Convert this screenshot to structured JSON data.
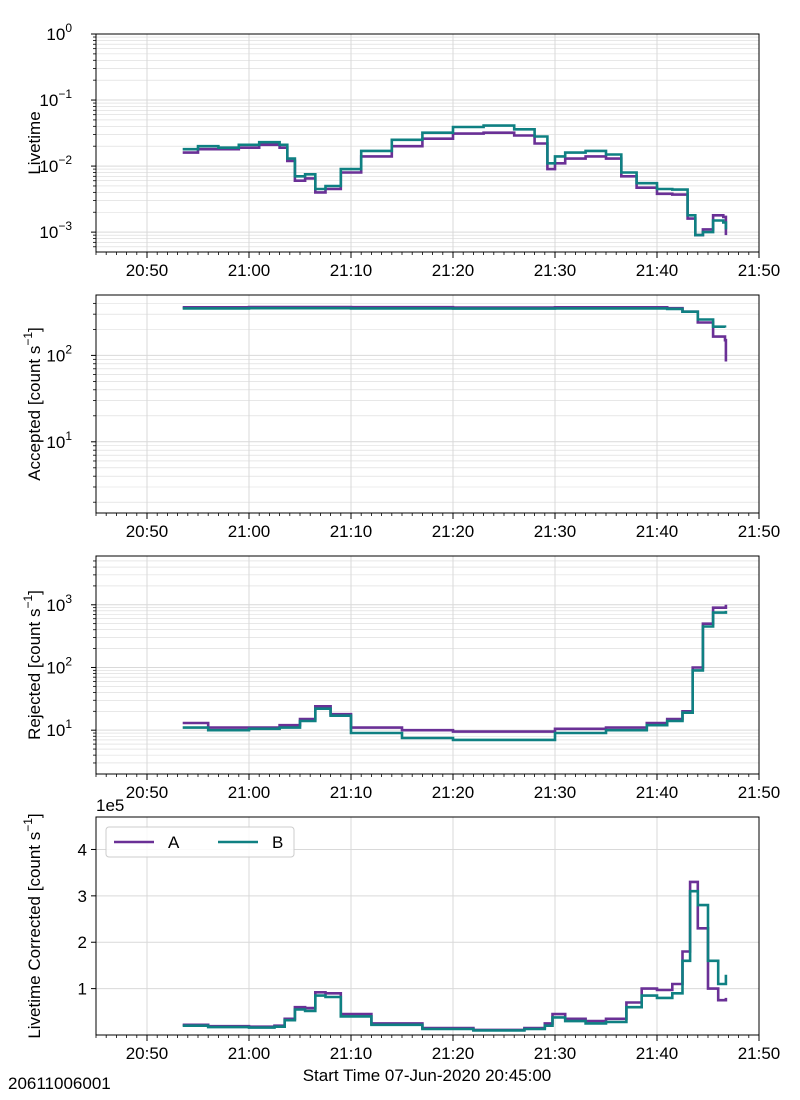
{
  "figure": {
    "footer_id": "20611006001",
    "xlabel": "Start Time 07-Jun-2020 20:45:00",
    "colors": {
      "A": "#6a3096",
      "B": "#0f8082",
      "grid": "#d9d9d9",
      "axes": "#000000"
    }
  },
  "chart_data": [
    {
      "type": "line",
      "panel": 1,
      "ylabel": "Livetime",
      "yscale": "log",
      "ylim": [
        0.0005,
        1
      ],
      "xlim": [
        "20:45",
        "21:50"
      ],
      "x_ticks": [
        "20:50",
        "21:00",
        "21:10",
        "21:20",
        "21:30",
        "21:40",
        "21:50"
      ],
      "y_ticks": [
        {
          "base": "10",
          "exp": "0",
          "value": 1
        },
        {
          "base": "10",
          "exp": "−1",
          "value": 0.1
        },
        {
          "base": "10",
          "exp": "−2",
          "value": 0.01
        },
        {
          "base": "10",
          "exp": "−3",
          "value": 0.001
        }
      ],
      "grid": true,
      "series": [
        {
          "name": "A",
          "color": "#6a3096",
          "x": [
            "20:53:30",
            "20:55:00",
            "20:57:00",
            "20:59:00",
            "21:01:00",
            "21:03:00",
            "21:03:45",
            "21:04:30",
            "21:05:30",
            "21:06:30",
            "21:07:30",
            "21:09:00",
            "21:11:00",
            "21:14:00",
            "21:17:00",
            "21:20:00",
            "21:23:00",
            "21:26:00",
            "21:28:00",
            "21:29:15",
            "21:30:00",
            "21:31:00",
            "21:33:00",
            "21:35:00",
            "21:36:30",
            "21:38:00",
            "21:40:00",
            "21:41:30",
            "21:43:00",
            "21:43:45",
            "21:44:30",
            "21:45:30",
            "21:46:30",
            "21:46:45"
          ],
          "y": [
            0.016,
            0.018,
            0.018,
            0.019,
            0.021,
            0.019,
            0.012,
            0.006,
            0.0065,
            0.004,
            0.0045,
            0.008,
            0.014,
            0.02,
            0.026,
            0.031,
            0.032,
            0.029,
            0.022,
            0.009,
            0.011,
            0.013,
            0.014,
            0.013,
            0.007,
            0.0047,
            0.0038,
            0.0037,
            0.0016,
            0.0009,
            0.0011,
            0.0018,
            0.0017,
            0.0009
          ]
        },
        {
          "name": "B",
          "color": "#0f8082",
          "x": [
            "20:53:30",
            "20:55:00",
            "20:57:00",
            "20:59:00",
            "21:01:00",
            "21:03:00",
            "21:03:45",
            "21:04:30",
            "21:05:30",
            "21:06:30",
            "21:07:30",
            "21:09:00",
            "21:11:00",
            "21:14:00",
            "21:17:00",
            "21:20:00",
            "21:23:00",
            "21:26:00",
            "21:28:00",
            "21:29:15",
            "21:30:00",
            "21:31:00",
            "21:33:00",
            "21:35:00",
            "21:36:30",
            "21:38:00",
            "21:40:00",
            "21:41:30",
            "21:43:00",
            "21:43:45",
            "21:44:30",
            "21:45:30",
            "21:46:30",
            "21:46:45"
          ],
          "y": [
            0.018,
            0.02,
            0.019,
            0.021,
            0.023,
            0.021,
            0.013,
            0.007,
            0.0075,
            0.0045,
            0.005,
            0.009,
            0.017,
            0.025,
            0.032,
            0.039,
            0.041,
            0.036,
            0.028,
            0.011,
            0.014,
            0.016,
            0.017,
            0.015,
            0.008,
            0.0055,
            0.0045,
            0.0044,
            0.0018,
            0.0009,
            0.001,
            0.0015,
            0.0014,
            0.0011
          ]
        }
      ]
    },
    {
      "type": "line",
      "panel": 2,
      "ylabel": "Accepted [count s",
      "ylabel_sup": "−1",
      "ylabel_end": "]",
      "yscale": "log",
      "ylim": [
        1.5,
        500
      ],
      "xlim": [
        "20:45",
        "21:50"
      ],
      "x_ticks": [
        "20:50",
        "21:00",
        "21:10",
        "21:20",
        "21:30",
        "21:40",
        "21:50"
      ],
      "y_ticks": [
        {
          "base": "10",
          "exp": "2",
          "value": 100
        },
        {
          "base": "10",
          "exp": "1",
          "value": 10
        }
      ],
      "grid": true,
      "series": [
        {
          "name": "A",
          "color": "#6a3096",
          "x": [
            "20:53:30",
            "21:00:00",
            "21:10:00",
            "21:20:00",
            "21:30:00",
            "21:38:00",
            "21:41:00",
            "21:42:30",
            "21:44:00",
            "21:45:30",
            "21:46:40",
            "21:46:45"
          ],
          "y": [
            360,
            362,
            361,
            358,
            360,
            360,
            352,
            320,
            240,
            165,
            150,
            85
          ]
        },
        {
          "name": "B",
          "color": "#0f8082",
          "x": [
            "20:53:30",
            "21:00:00",
            "21:10:00",
            "21:20:00",
            "21:30:00",
            "21:38:00",
            "21:41:00",
            "21:42:30",
            "21:44:00",
            "21:45:30",
            "21:46:40"
          ],
          "y": [
            350,
            352,
            350,
            348,
            350,
            350,
            345,
            320,
            260,
            215,
            210
          ]
        }
      ]
    },
    {
      "type": "line",
      "panel": 3,
      "ylabel": "Rejected [count s",
      "ylabel_sup": "−1",
      "ylabel_end": "]",
      "yscale": "log",
      "ylim": [
        2,
        6000
      ],
      "xlim": [
        "20:45",
        "21:50"
      ],
      "x_ticks": [
        "20:50",
        "21:00",
        "21:10",
        "21:20",
        "21:30",
        "21:40",
        "21:50"
      ],
      "y_ticks": [
        {
          "base": "10",
          "exp": "3",
          "value": 1000
        },
        {
          "base": "10",
          "exp": "2",
          "value": 100
        },
        {
          "base": "10",
          "exp": "1",
          "value": 10
        }
      ],
      "grid": true,
      "series": [
        {
          "name": "A",
          "color": "#6a3096",
          "x": [
            "20:53:30",
            "20:56:00",
            "21:00:00",
            "21:03:00",
            "21:05:00",
            "21:06:30",
            "21:08:00",
            "21:10:00",
            "21:15:00",
            "21:20:00",
            "21:25:00",
            "21:30:00",
            "21:35:00",
            "21:39:00",
            "21:41:00",
            "21:42:30",
            "21:43:30",
            "21:44:30",
            "21:45:30",
            "21:46:45"
          ],
          "y": [
            13,
            11,
            11,
            12,
            15,
            24,
            18,
            11,
            10,
            9.5,
            9.5,
            10.5,
            11,
            13,
            15,
            20,
            100,
            500,
            900,
            1000
          ]
        },
        {
          "name": "B",
          "color": "#0f8082",
          "x": [
            "20:53:30",
            "20:56:00",
            "21:00:00",
            "21:03:00",
            "21:05:00",
            "21:06:30",
            "21:08:00",
            "21:10:00",
            "21:15:00",
            "21:20:00",
            "21:25:00",
            "21:30:00",
            "21:35:00",
            "21:39:00",
            "21:41:00",
            "21:42:30",
            "21:43:30",
            "21:44:30",
            "21:45:30",
            "21:46:45"
          ],
          "y": [
            11,
            10,
            10.5,
            11,
            14,
            22,
            17,
            9,
            7.5,
            7,
            7,
            9,
            10,
            12,
            14,
            19,
            90,
            450,
            750,
            800
          ]
        }
      ]
    },
    {
      "type": "line",
      "panel": 4,
      "ylabel": "Livetime Corrected [count s",
      "ylabel_sup": "−1",
      "ylabel_end": "]",
      "yscale": "linear",
      "ylim": [
        0,
        470000
      ],
      "offset_label": "1e5",
      "xlim": [
        "20:45",
        "21:50"
      ],
      "x_ticks": [
        "20:50",
        "21:00",
        "21:10",
        "21:20",
        "21:30",
        "21:40",
        "21:50"
      ],
      "y_ticks": [
        {
          "label": "1",
          "value": 100000
        },
        {
          "label": "2",
          "value": 200000
        },
        {
          "label": "3",
          "value": 300000
        },
        {
          "label": "4",
          "value": 400000
        }
      ],
      "grid": true,
      "legend": {
        "placement": "top-left",
        "entries": [
          "A",
          "B"
        ]
      },
      "series": [
        {
          "name": "A",
          "color": "#6a3096",
          "x": [
            "20:53:30",
            "20:56:00",
            "21:00:00",
            "21:02:30",
            "21:03:30",
            "21:04:30",
            "21:05:30",
            "21:06:30",
            "21:07:30",
            "21:09:00",
            "21:12:00",
            "21:17:00",
            "21:22:00",
            "21:27:00",
            "21:29:00",
            "21:29:45",
            "21:31:00",
            "21:33:00",
            "21:35:00",
            "21:37:00",
            "21:38:30",
            "21:40:00",
            "21:41:30",
            "21:42:30",
            "21:43:15",
            "21:44:00",
            "21:45:00",
            "21:46:00",
            "21:46:45"
          ],
          "y": [
            22000,
            19000,
            18000,
            20000,
            35000,
            60000,
            58000,
            92000,
            90000,
            45000,
            25000,
            15000,
            11000,
            15000,
            25000,
            45000,
            35000,
            30000,
            35000,
            70000,
            100000,
            97000,
            110000,
            180000,
            330000,
            230000,
            100000,
            75000,
            80000
          ]
        },
        {
          "name": "B",
          "color": "#0f8082",
          "x": [
            "20:53:30",
            "20:56:00",
            "21:00:00",
            "21:02:30",
            "21:03:30",
            "21:04:30",
            "21:05:30",
            "21:06:30",
            "21:07:30",
            "21:09:00",
            "21:12:00",
            "21:17:00",
            "21:22:00",
            "21:27:00",
            "21:29:00",
            "21:29:45",
            "21:31:00",
            "21:33:00",
            "21:35:00",
            "21:37:00",
            "21:38:30",
            "21:40:00",
            "21:41:30",
            "21:42:30",
            "21:43:15",
            "21:44:00",
            "21:45:00",
            "21:46:00",
            "21:46:45"
          ],
          "y": [
            20000,
            17000,
            16000,
            18000,
            32000,
            55000,
            52000,
            85000,
            82000,
            40000,
            22000,
            13000,
            10000,
            13000,
            20000,
            38000,
            30000,
            25000,
            28000,
            60000,
            85000,
            80000,
            90000,
            160000,
            310000,
            280000,
            160000,
            110000,
            130000
          ]
        }
      ]
    }
  ]
}
